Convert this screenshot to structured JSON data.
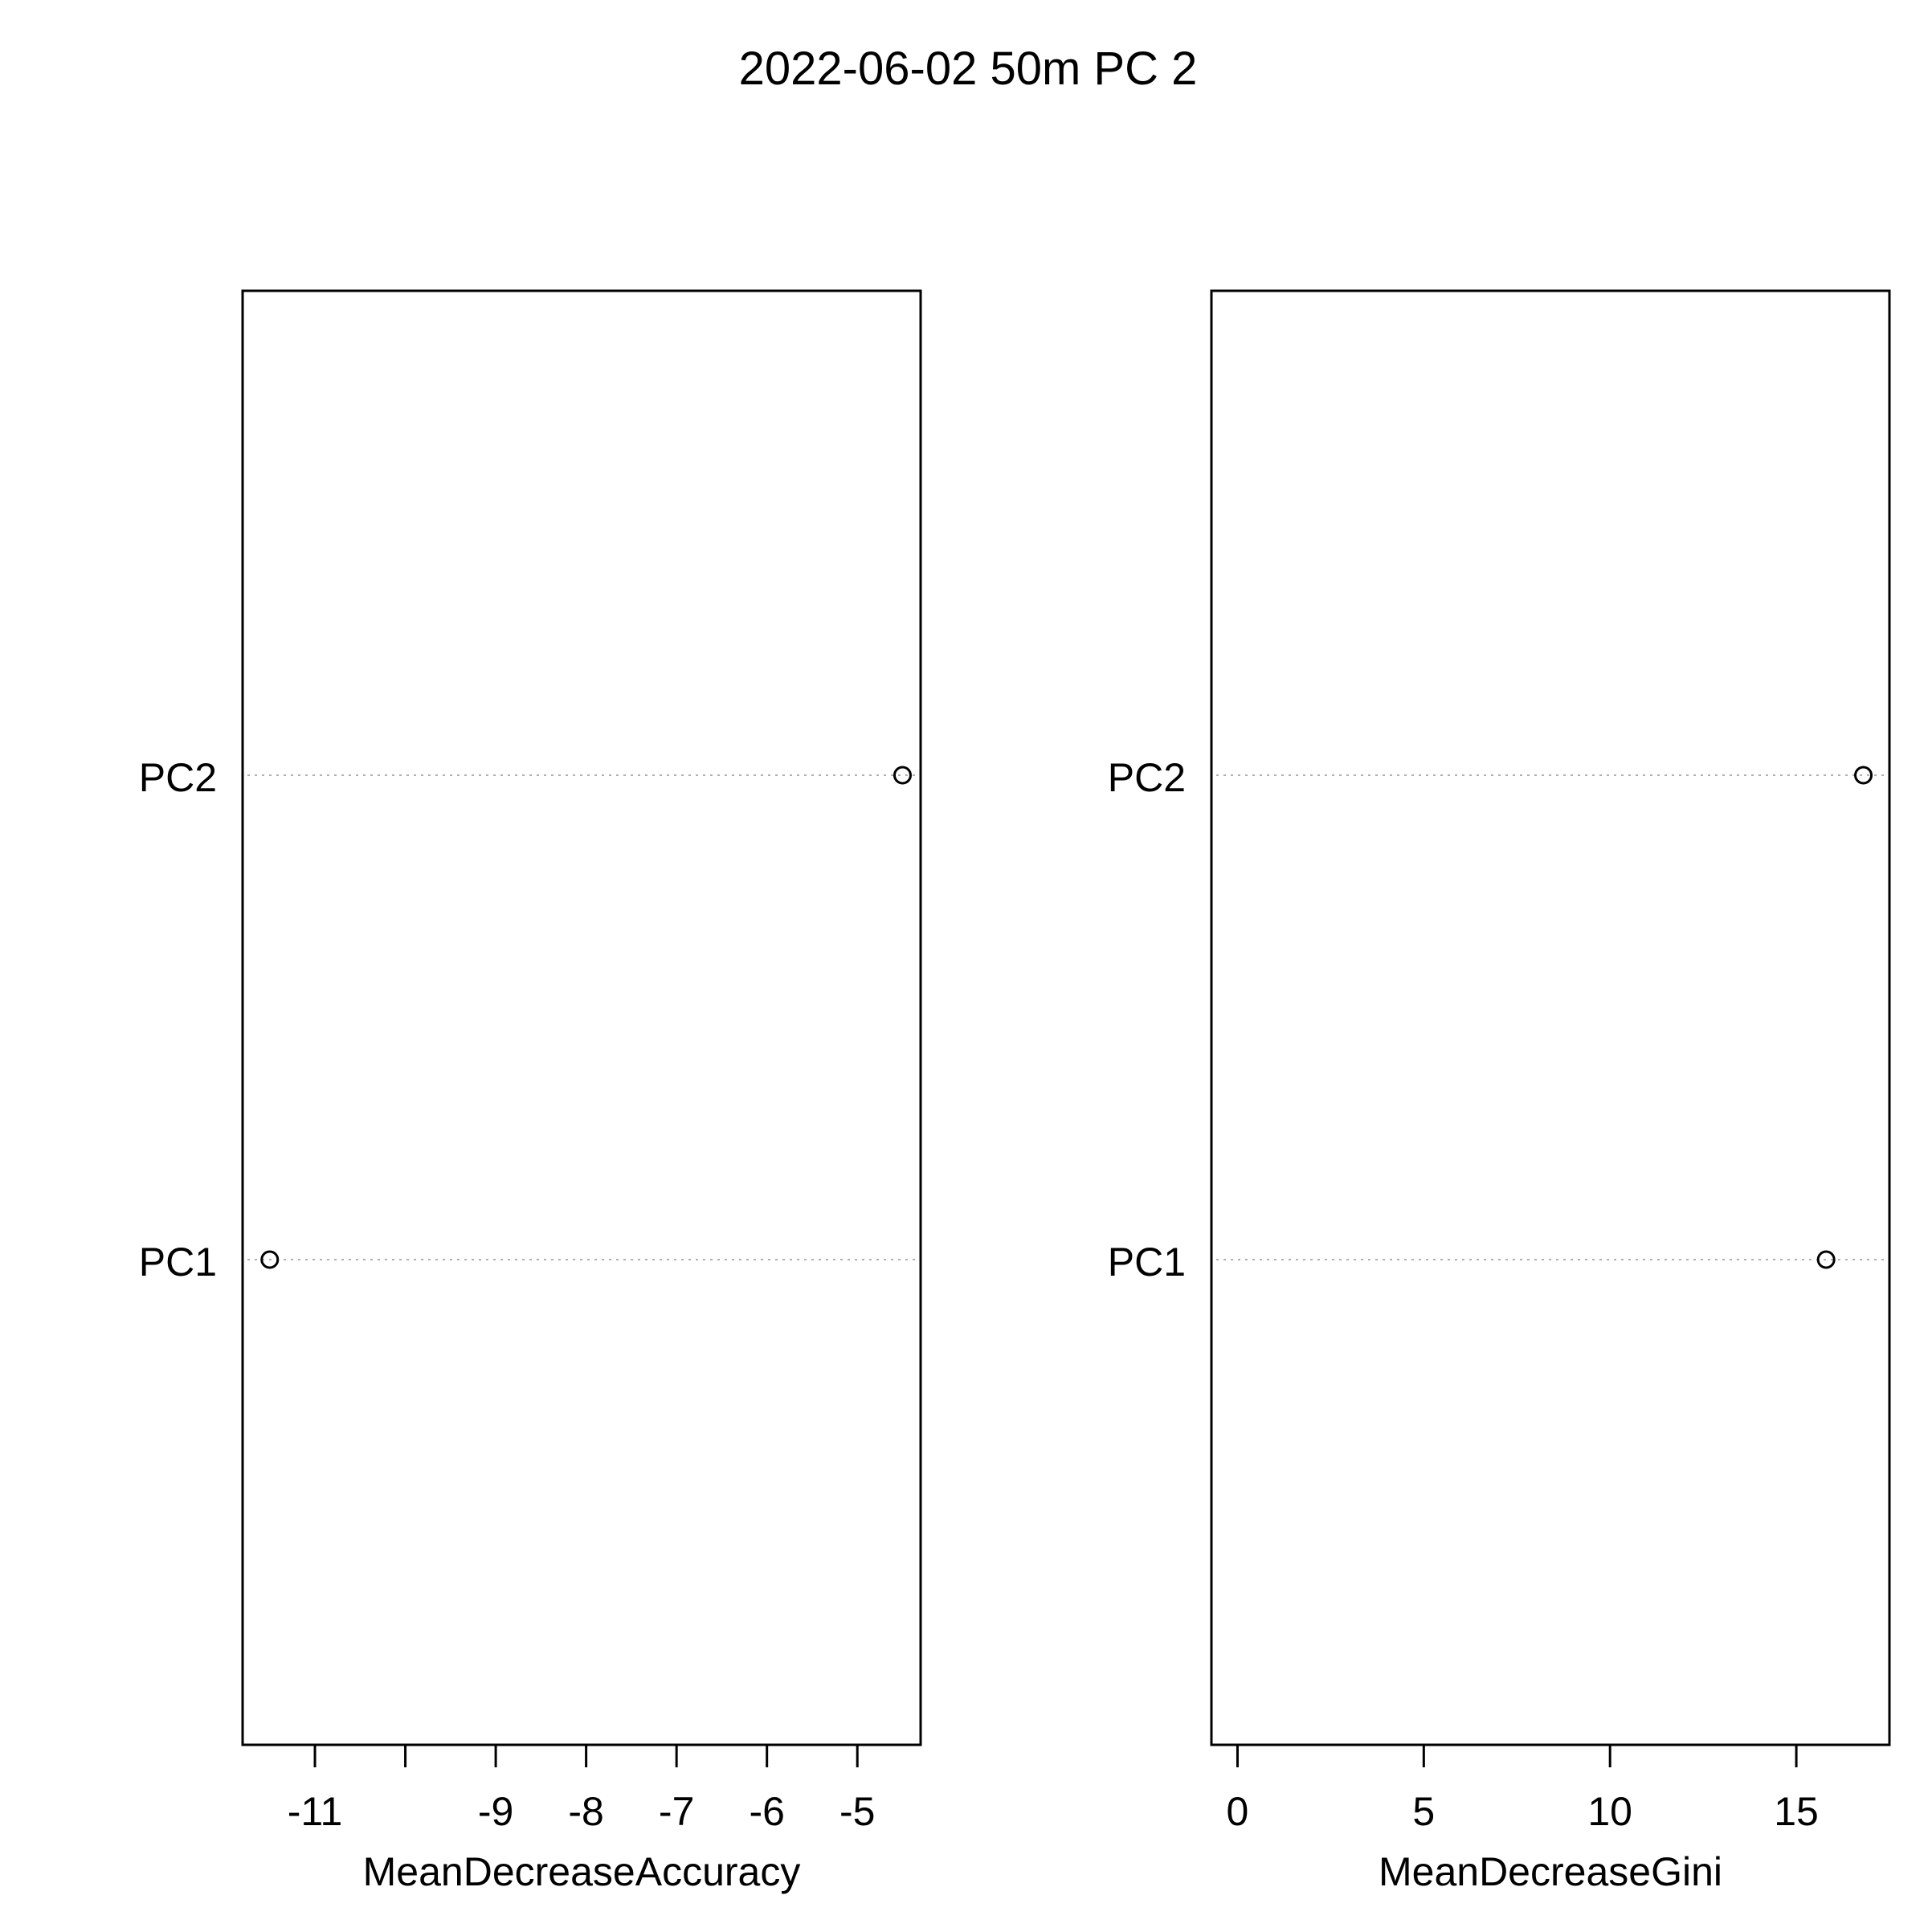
{
  "title": "2022-06-02 50m PC 2",
  "chart_data": [
    {
      "type": "scatter",
      "variant": "dotchart",
      "categories": [
        "PC2",
        "PC1"
      ],
      "values": [
        -4.5,
        -11.5
      ],
      "xlabel": "MeanDecreaseAccuracy",
      "ylabel": "",
      "xlim": [
        -11.8,
        -4.3
      ],
      "xticks": [
        -11,
        -10,
        -9,
        -8,
        -7,
        -6,
        -5
      ],
      "xticklabels": [
        "-11",
        "",
        "-9",
        "-8",
        "-7",
        "-6",
        "-5"
      ],
      "grid": "dotted horizontal lines per category"
    },
    {
      "type": "scatter",
      "variant": "dotchart",
      "categories": [
        "PC2",
        "PC1"
      ],
      "values": [
        16.8,
        15.8
      ],
      "xlabel": "MeanDecreaseGini",
      "ylabel": "",
      "xlim": [
        -0.7,
        17.5
      ],
      "xticks": [
        0,
        5,
        10,
        15
      ],
      "xticklabels": [
        "0",
        "5",
        "10",
        "15"
      ],
      "grid": "dotted horizontal lines per category"
    }
  ]
}
